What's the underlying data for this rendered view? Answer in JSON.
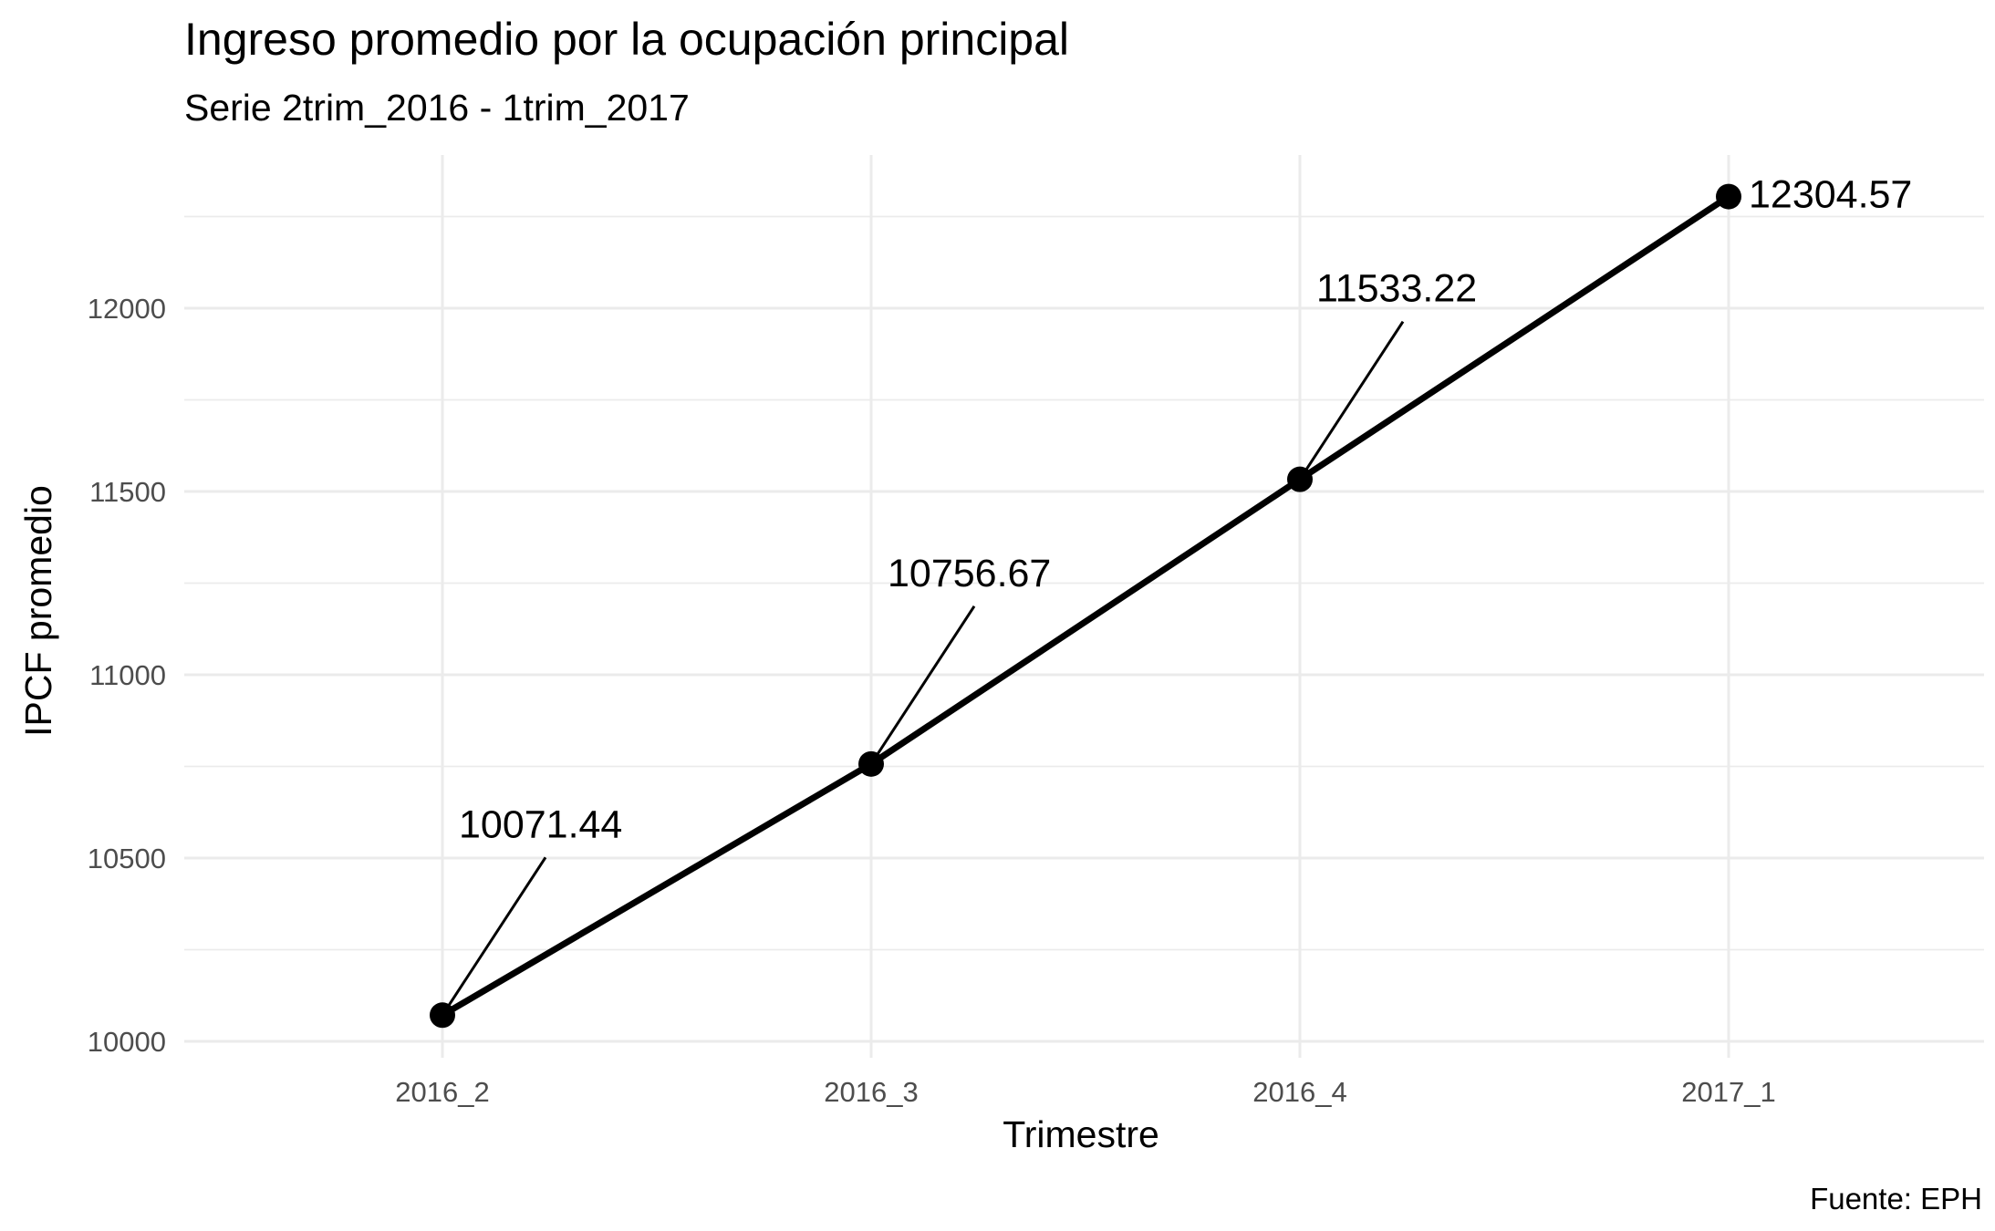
{
  "chart_data": {
    "type": "line",
    "title": "Ingreso promedio por la ocupación principal",
    "subtitle": "Serie 2trim_2016 - 1trim_2017",
    "caption": "Fuente: EPH",
    "xlabel": "Trimestre",
    "ylabel": "IPCF promedio",
    "categories": [
      "2016_2",
      "2016_3",
      "2016_4",
      "2017_1"
    ],
    "values": [
      10071.44,
      10756.67,
      11533.22,
      12304.57
    ],
    "data_labels": [
      "10071.44",
      "10756.67",
      "11533.22",
      "12304.57"
    ],
    "y_ticks": [
      10000,
      10500,
      11000,
      11500,
      12000
    ],
    "y_tick_labels": [
      "10000",
      "10500",
      "11000",
      "11500",
      "12000"
    ],
    "grid": true,
    "legend": "none",
    "colors": {
      "line": "#000000",
      "grid": "#ebebeb",
      "tick_text": "#4d4d4d"
    }
  }
}
